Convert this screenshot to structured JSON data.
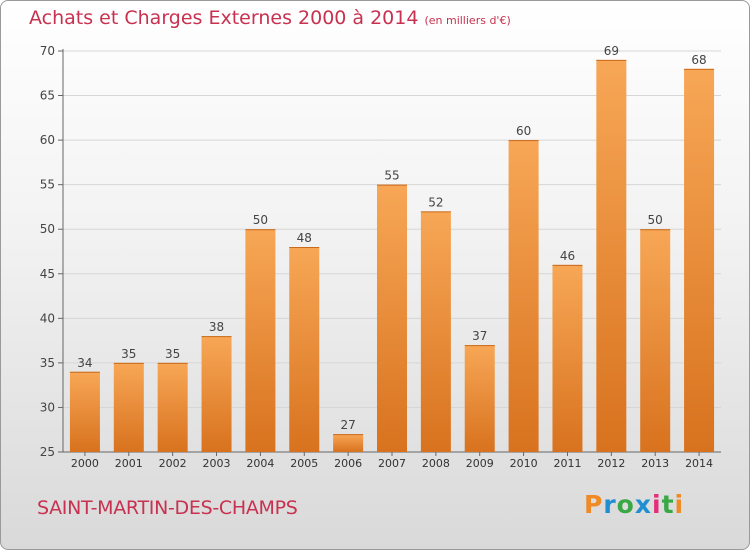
{
  "chart_data": {
    "type": "bar",
    "title": "Achats et Charges Externes 2000 à 2014",
    "subtitle": "(en milliers d'€)",
    "categories": [
      "2000",
      "2001",
      "2002",
      "2003",
      "2004",
      "2005",
      "2006",
      "2007",
      "2008",
      "2009",
      "2010",
      "2011",
      "2012",
      "2013",
      "2014"
    ],
    "values": [
      34,
      35,
      35,
      38,
      50,
      48,
      27,
      55,
      52,
      37,
      60,
      46,
      69,
      50,
      68
    ],
    "ylim": [
      25,
      70
    ],
    "yticks": [
      25,
      30,
      35,
      40,
      45,
      50,
      55,
      60,
      65,
      70
    ],
    "grid": true,
    "xlabel": "",
    "ylabel": ""
  },
  "commune": "SAINT-MARTIN-DES-CHAMPS",
  "logo": {
    "text": "Proxiti",
    "colors": [
      "#f08a24",
      "#1f8fd1",
      "#3aa845",
      "#1f8fd1",
      "#e52d7b",
      "#3aa845",
      "#f08a24"
    ]
  },
  "colors": {
    "bar_light": "#f7a756",
    "bar_dark": "#d8721e",
    "accent": "#c8314f"
  }
}
